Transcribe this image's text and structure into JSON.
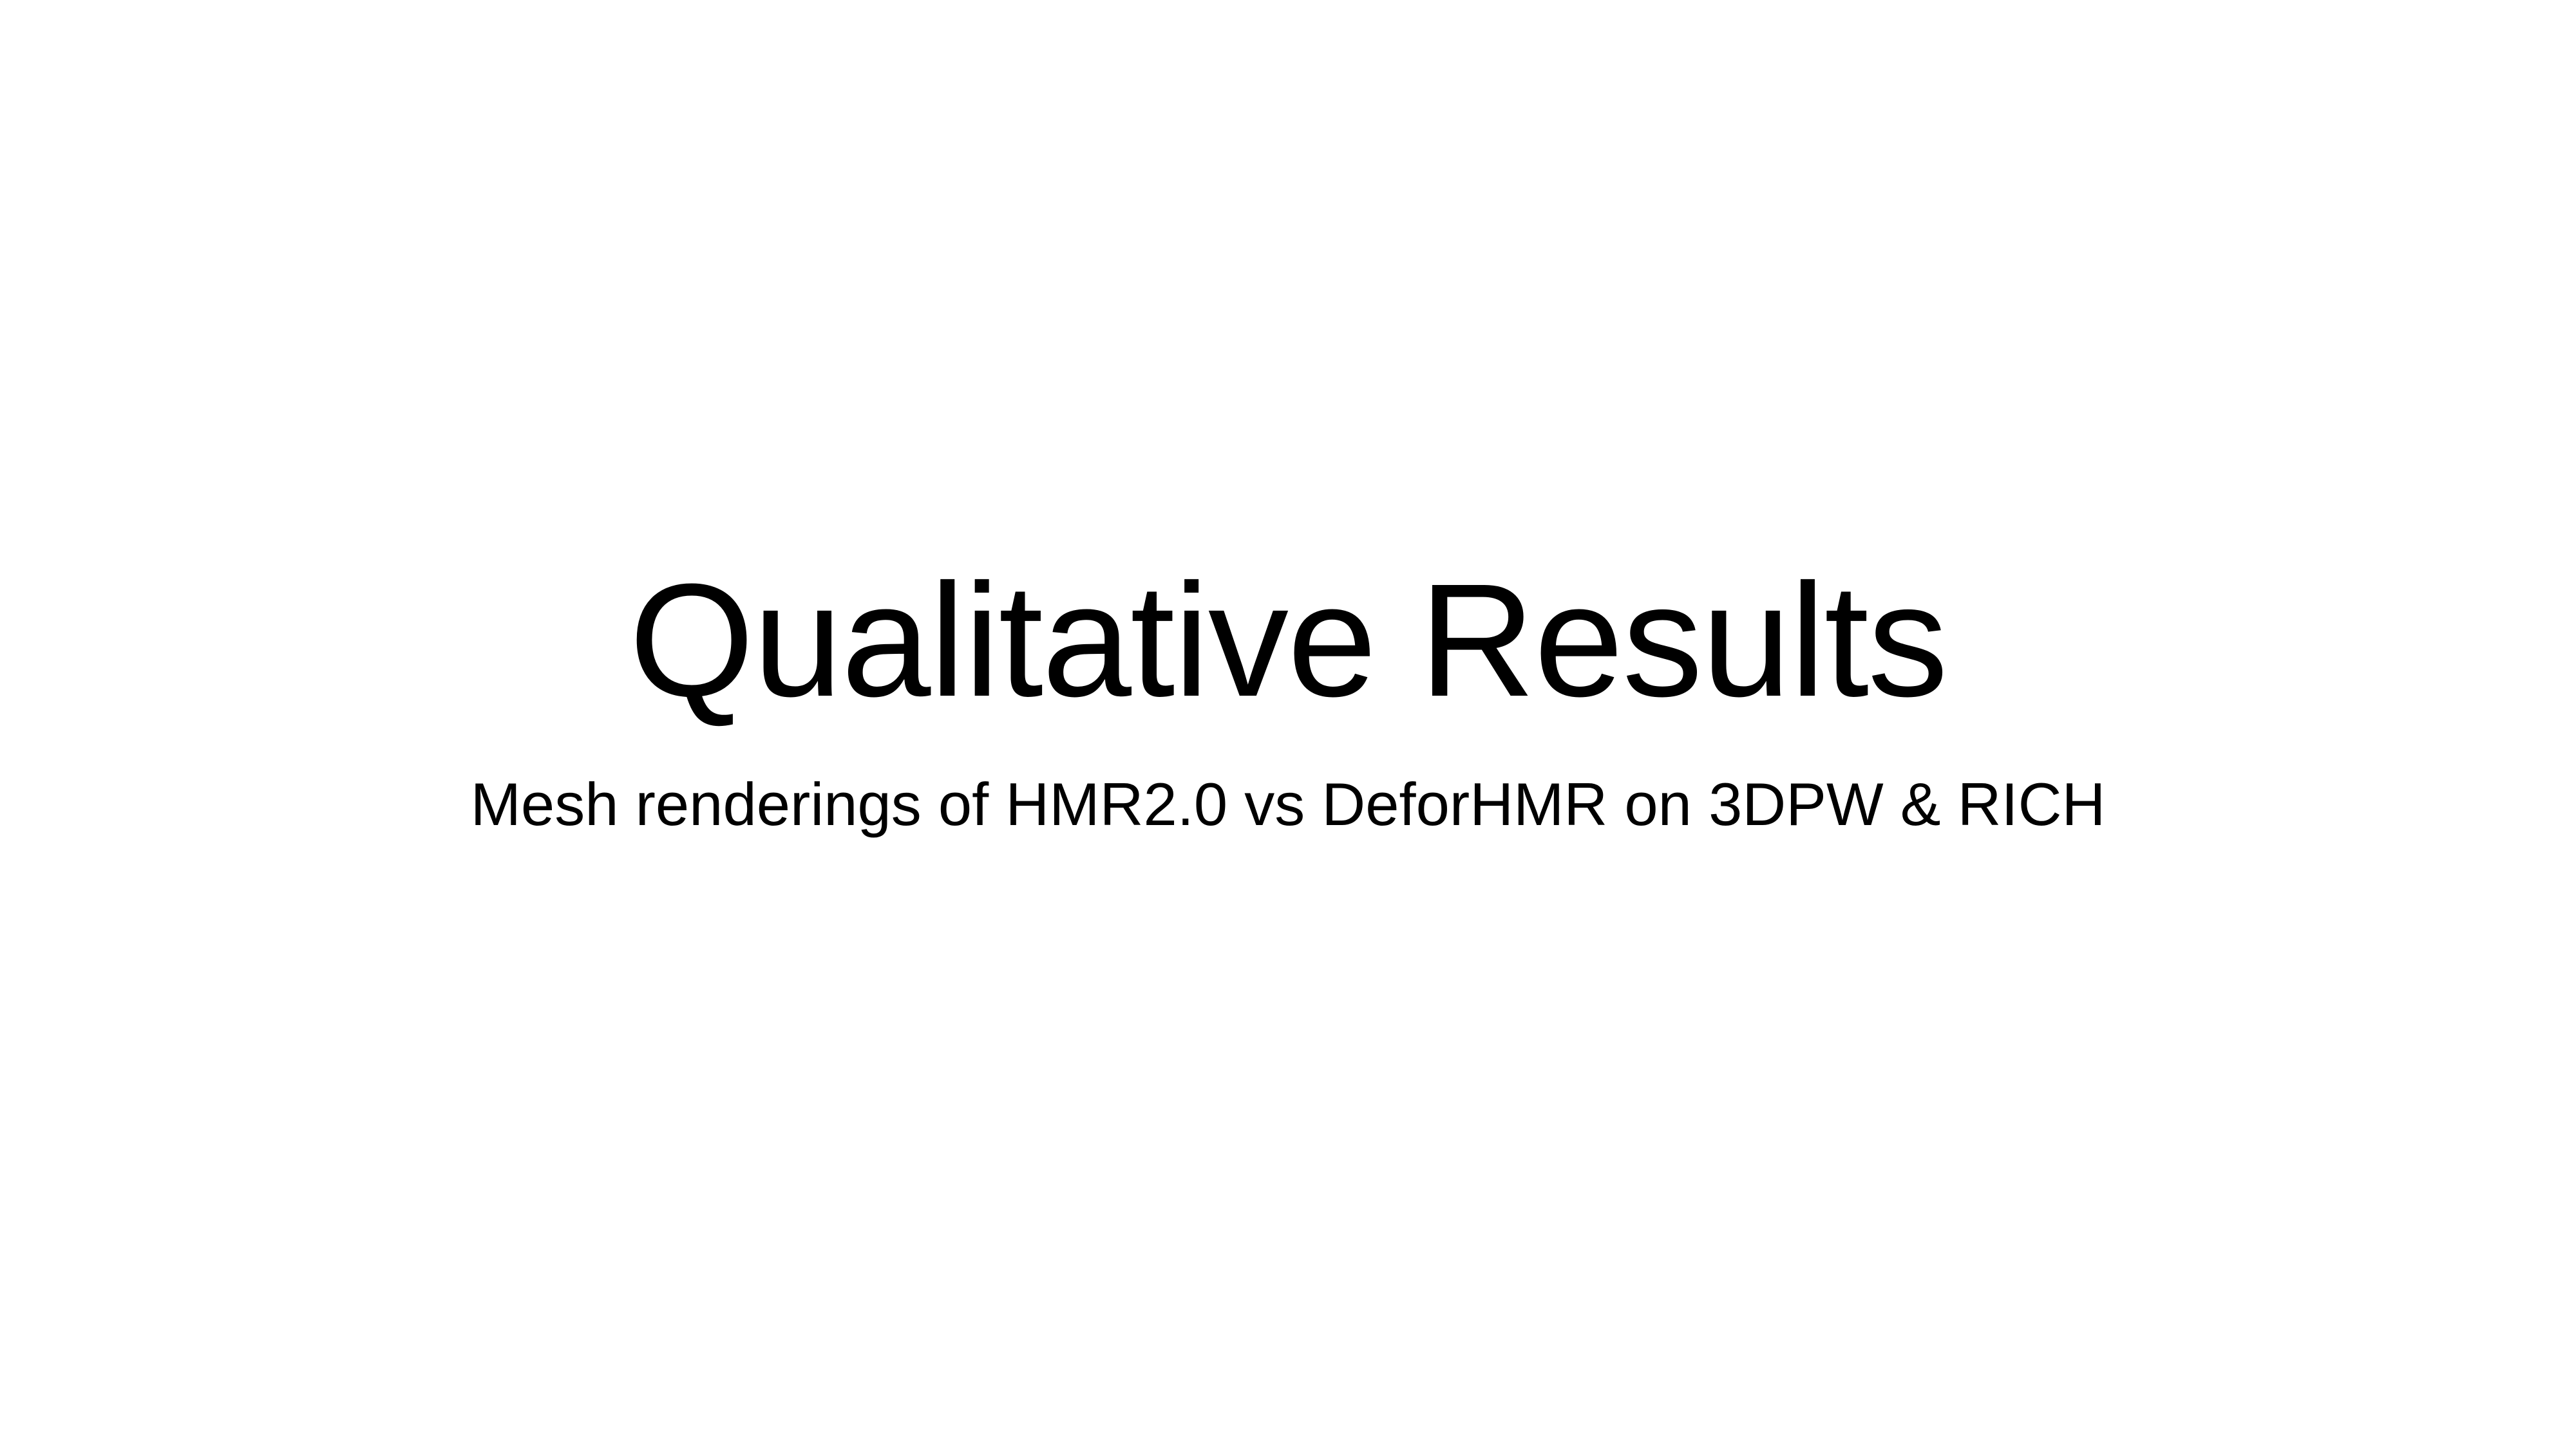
{
  "slide": {
    "title": "Qualitative Results",
    "subtitle": "Mesh renderings of HMR2.0 vs DeforHMR on 3DPW & RICH"
  },
  "colors": {
    "background": "#ffffff",
    "text": "#000000"
  }
}
